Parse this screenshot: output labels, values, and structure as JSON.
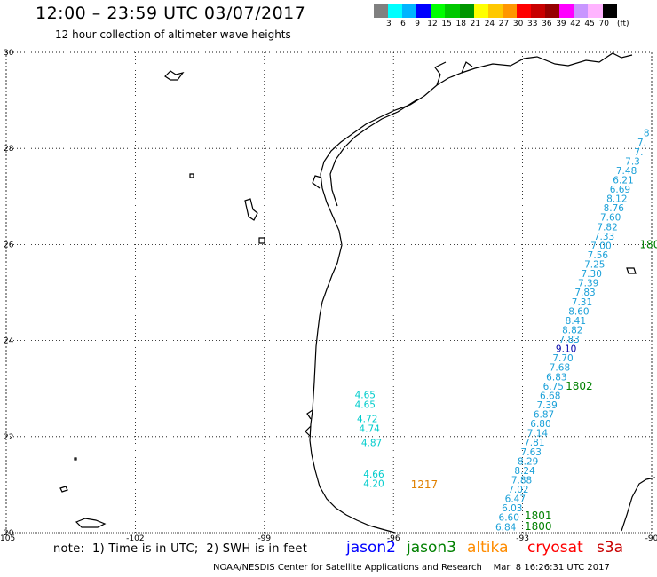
{
  "header": {
    "title": "12:00 – 23:59 UTC 03/07/2017",
    "subtitle": "12 hour collection of altimeter wave heights"
  },
  "legend": {
    "unit": "(ft)",
    "ticks": [
      "3",
      "6",
      "9",
      "12",
      "15",
      "18",
      "21",
      "24",
      "27",
      "30",
      "33",
      "36",
      "39",
      "42",
      "45",
      "70"
    ],
    "colors": [
      "#808080",
      "#00ffff",
      "#00b4ff",
      "#0000ff",
      "#00ff00",
      "#00c800",
      "#009600",
      "#ffff00",
      "#ffc800",
      "#ff9600",
      "#ff0000",
      "#c80000",
      "#960000",
      "#ff00ff",
      "#c896ff",
      "#ffb4ff",
      "#000000"
    ]
  },
  "map": {
    "lat_ticks": [
      "30",
      "28",
      "26",
      "24",
      "22",
      "20"
    ],
    "lon_ticks": [
      "-105",
      "-102",
      "-99",
      "-96",
      "-93",
      "-90"
    ],
    "track_left_color": "#00cccc",
    "track_right_color": "#1aa0d8",
    "time_label_color": "#008000",
    "altika_color": "#e08000",
    "track_left": [
      {
        "lat": 22.8,
        "lon": -96.9,
        "v": "4.65"
      },
      {
        "lat": 22.6,
        "lon": -96.9,
        "v": "4.65"
      },
      {
        "lat": 22.3,
        "lon": -96.85,
        "v": "4.72"
      },
      {
        "lat": 22.1,
        "lon": -96.8,
        "v": "4.74"
      },
      {
        "lat": 21.8,
        "lon": -96.75,
        "v": "4.87"
      },
      {
        "lat": 21.15,
        "lon": -96.7,
        "v": "4.66"
      },
      {
        "lat": 20.95,
        "lon": -96.7,
        "v": "4.20"
      }
    ],
    "altika_label": "1217",
    "track_right": [
      "8",
      "7.",
      "7.",
      "7.3",
      "7.48",
      "6.21",
      "6.69",
      "8.12",
      "8.76",
      "7.60",
      "7.82",
      "7.33",
      "7.00",
      "7.56",
      "7.25",
      "7.30",
      "7.39",
      "7.83",
      "7.31",
      "8.60",
      "8.41",
      "8.82",
      "7.83",
      "9.10",
      "7.70",
      "7.68",
      "6.83",
      "6.75",
      "6.68",
      "7.39",
      "6.87",
      "6.80",
      "7.14",
      "7.81",
      "7.63",
      "8.29",
      "8.24",
      "7.88",
      "7.02",
      "6.47",
      "6.03",
      "6.60",
      "6.84"
    ],
    "track_right_dark_value": "9.10",
    "time_labels": [
      {
        "lat": 25.92,
        "lon": -90.28,
        "text": "180"
      },
      {
        "lat": 22.98,
        "lon": -92.0,
        "text": "1802"
      },
      {
        "lat": 20.28,
        "lon": -92.95,
        "text": "1801"
      },
      {
        "lat": 20.06,
        "lon": -92.95,
        "text": "1800"
      }
    ]
  },
  "footer": {
    "note": "note:  1) Time is in UTC;  2) SWH is in feet",
    "satellites": [
      {
        "name": "jason2",
        "color": "#0000ff"
      },
      {
        "name": "jason3",
        "color": "#008000"
      },
      {
        "name": "altika",
        "color": "#ff8c00"
      },
      {
        "name": "cryosat",
        "color": "#ff0000"
      },
      {
        "name": "s3a",
        "color": "#c80000"
      }
    ],
    "credit": "NOAA/NESDIS Center for Satellite Applications and Research    Mar  8 16:26:31 UTC 2017"
  }
}
